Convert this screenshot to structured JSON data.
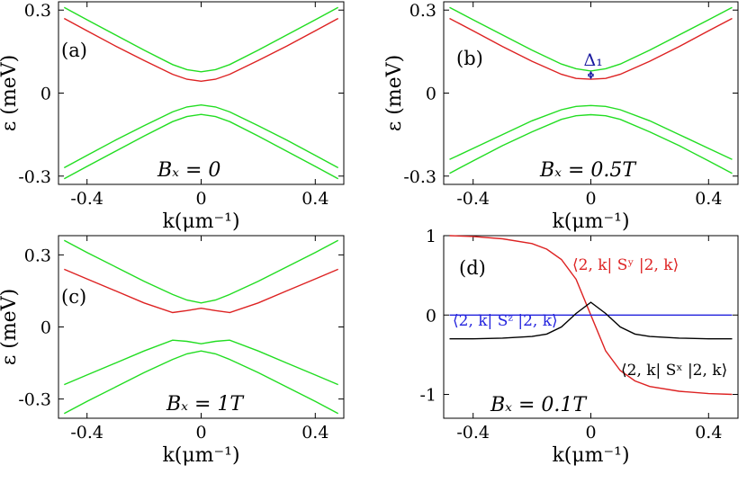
{
  "chart_data": [
    {
      "type": "line",
      "panel_label": "(a)",
      "field_label": "Bₓ = 0",
      "xlabel": "k(μm⁻¹)",
      "ylabel": "ε (meV)",
      "xlim": [
        -0.5,
        0.5
      ],
      "ylim": [
        -0.33,
        0.33
      ],
      "xticks": [
        {
          "value": -0.4,
          "label": "-0.4"
        },
        {
          "value": 0,
          "label": "0"
        },
        {
          "value": 0.4,
          "label": "0.4"
        }
      ],
      "yticks": [
        {
          "value": 0.3,
          "label": "0.3"
        },
        {
          "value": 0,
          "label": "0"
        },
        {
          "value": -0.3,
          "label": "-0.3"
        }
      ],
      "series": [
        {
          "color": "#22dd22",
          "x": [
            -0.48,
            -0.4,
            -0.3,
            -0.2,
            -0.1,
            -0.05,
            0,
            0.05,
            0.1,
            0.2,
            0.3,
            0.4,
            0.48
          ],
          "y": [
            0.31,
            0.265,
            0.21,
            0.155,
            0.103,
            0.085,
            0.077,
            0.085,
            0.103,
            0.155,
            0.21,
            0.265,
            0.31
          ]
        },
        {
          "color": "#dd2222",
          "x": [
            -0.48,
            -0.4,
            -0.3,
            -0.2,
            -0.1,
            -0.05,
            0,
            0.05,
            0.1,
            0.2,
            0.3,
            0.4,
            0.48
          ],
          "y": [
            0.27,
            0.225,
            0.17,
            0.118,
            0.068,
            0.05,
            0.043,
            0.05,
            0.068,
            0.118,
            0.17,
            0.225,
            0.27
          ]
        },
        {
          "color": "#22dd22",
          "x": [
            -0.48,
            -0.4,
            -0.3,
            -0.2,
            -0.1,
            -0.05,
            0,
            0.05,
            0.1,
            0.2,
            0.3,
            0.4,
            0.48
          ],
          "y": [
            -0.27,
            -0.225,
            -0.17,
            -0.118,
            -0.068,
            -0.05,
            -0.043,
            -0.05,
            -0.068,
            -0.118,
            -0.17,
            -0.225,
            -0.27
          ]
        },
        {
          "color": "#22dd22",
          "x": [
            -0.48,
            -0.4,
            -0.3,
            -0.2,
            -0.1,
            -0.05,
            0,
            0.05,
            0.1,
            0.2,
            0.3,
            0.4,
            0.48
          ],
          "y": [
            -0.31,
            -0.265,
            -0.21,
            -0.155,
            -0.103,
            -0.085,
            -0.077,
            -0.085,
            -0.103,
            -0.155,
            -0.21,
            -0.265,
            -0.31
          ]
        }
      ]
    },
    {
      "type": "line",
      "panel_label": "(b)",
      "field_label": "Bₓ = 0.5T",
      "xlabel": "k(μm⁻¹)",
      "ylabel": "ε (meV)",
      "annotation": "Δ₁",
      "xlim": [
        -0.5,
        0.5
      ],
      "ylim": [
        -0.33,
        0.33
      ],
      "xticks": [
        {
          "value": -0.4,
          "label": "-0.4"
        },
        {
          "value": 0,
          "label": "0"
        },
        {
          "value": 0.4,
          "label": "0.4"
        }
      ],
      "yticks": [
        {
          "value": 0.3,
          "label": "0.3"
        },
        {
          "value": 0,
          "label": "0"
        },
        {
          "value": -0.3,
          "label": "-0.3"
        }
      ],
      "series": [
        {
          "color": "#22dd22",
          "x": [
            -0.48,
            -0.4,
            -0.3,
            -0.2,
            -0.1,
            -0.05,
            0,
            0.05,
            0.1,
            0.2,
            0.3,
            0.4,
            0.48
          ],
          "y": [
            0.31,
            0.265,
            0.21,
            0.155,
            0.105,
            0.088,
            0.08,
            0.088,
            0.105,
            0.155,
            0.21,
            0.265,
            0.31
          ]
        },
        {
          "color": "#dd2222",
          "x": [
            -0.48,
            -0.4,
            -0.3,
            -0.2,
            -0.1,
            -0.05,
            0,
            0.05,
            0.1,
            0.2,
            0.3,
            0.4,
            0.48
          ],
          "y": [
            0.27,
            0.225,
            0.168,
            0.115,
            0.068,
            0.053,
            0.05,
            0.053,
            0.068,
            0.115,
            0.168,
            0.225,
            0.27
          ]
        },
        {
          "color": "#22dd22",
          "x": [
            -0.48,
            -0.4,
            -0.3,
            -0.2,
            -0.1,
            -0.05,
            0,
            0.05,
            0.1,
            0.2,
            0.3,
            0.4,
            0.48
          ],
          "y": [
            -0.24,
            -0.2,
            -0.15,
            -0.1,
            -0.06,
            -0.048,
            -0.045,
            -0.048,
            -0.06,
            -0.1,
            -0.15,
            -0.2,
            -0.24
          ]
        },
        {
          "color": "#22dd22",
          "x": [
            -0.48,
            -0.4,
            -0.3,
            -0.2,
            -0.1,
            -0.05,
            0,
            0.05,
            0.1,
            0.2,
            0.3,
            0.4,
            0.48
          ],
          "y": [
            -0.29,
            -0.245,
            -0.19,
            -0.14,
            -0.095,
            -0.082,
            -0.078,
            -0.082,
            -0.095,
            -0.14,
            -0.19,
            -0.245,
            -0.29
          ]
        }
      ]
    },
    {
      "type": "line",
      "panel_label": "(c)",
      "field_label": "Bₓ = 1T",
      "xlabel": "k(μm⁻¹)",
      "ylabel": "ε (meV)",
      "xlim": [
        -0.5,
        0.5
      ],
      "ylim": [
        -0.38,
        0.38
      ],
      "xticks": [
        {
          "value": -0.4,
          "label": "-0.4"
        },
        {
          "value": 0,
          "label": "0"
        },
        {
          "value": 0.4,
          "label": "0.4"
        }
      ],
      "yticks": [
        {
          "value": 0.3,
          "label": "0.3"
        },
        {
          "value": 0,
          "label": "0"
        },
        {
          "value": -0.3,
          "label": "-0.3"
        }
      ],
      "series": [
        {
          "color": "#22dd22",
          "x": [
            -0.48,
            -0.4,
            -0.3,
            -0.2,
            -0.1,
            -0.05,
            0,
            0.05,
            0.1,
            0.2,
            0.3,
            0.4,
            0.48
          ],
          "y": [
            0.36,
            0.31,
            0.25,
            0.19,
            0.135,
            0.112,
            0.1,
            0.112,
            0.135,
            0.19,
            0.25,
            0.31,
            0.36
          ]
        },
        {
          "color": "#dd2222",
          "x": [
            -0.48,
            -0.4,
            -0.3,
            -0.2,
            -0.1,
            -0.05,
            0,
            0.05,
            0.1,
            0.2,
            0.3,
            0.4,
            0.48
          ],
          "y": [
            0.24,
            0.2,
            0.15,
            0.1,
            0.06,
            0.068,
            0.078,
            0.068,
            0.06,
            0.1,
            0.15,
            0.2,
            0.24
          ]
        },
        {
          "color": "#22dd22",
          "x": [
            -0.48,
            -0.4,
            -0.3,
            -0.2,
            -0.1,
            -0.05,
            0,
            0.05,
            0.1,
            0.2,
            0.3,
            0.4,
            0.48
          ],
          "y": [
            -0.24,
            -0.2,
            -0.15,
            -0.1,
            -0.055,
            -0.06,
            -0.07,
            -0.06,
            -0.055,
            -0.1,
            -0.15,
            -0.2,
            -0.24
          ]
        },
        {
          "color": "#22dd22",
          "x": [
            -0.48,
            -0.4,
            -0.3,
            -0.2,
            -0.1,
            -0.05,
            0,
            0.05,
            0.1,
            0.2,
            0.3,
            0.4,
            0.48
          ],
          "y": [
            -0.36,
            -0.31,
            -0.25,
            -0.19,
            -0.135,
            -0.112,
            -0.1,
            -0.112,
            -0.135,
            -0.19,
            -0.25,
            -0.31,
            -0.36
          ]
        }
      ]
    },
    {
      "type": "line",
      "panel_label": "(d)",
      "field_label": "Bₓ = 0.1T",
      "xlabel": "k(μm⁻¹)",
      "xlim": [
        -0.5,
        0.5
      ],
      "ylim": [
        -1.3,
        1.0
      ],
      "xticks": [
        {
          "value": -0.4,
          "label": "-0.4"
        },
        {
          "value": 0,
          "label": "0"
        },
        {
          "value": 0.4,
          "label": "0.4"
        }
      ],
      "yticks": [
        {
          "value": 1,
          "label": "1"
        },
        {
          "value": 0,
          "label": "0"
        },
        {
          "value": -1,
          "label": "-1"
        }
      ],
      "series": [
        {
          "name": "⟨2, k| Sʸ |2, k⟩",
          "color": "#dd2222",
          "x": [
            -0.48,
            -0.4,
            -0.3,
            -0.2,
            -0.15,
            -0.1,
            -0.05,
            0,
            0.05,
            0.1,
            0.15,
            0.2,
            0.3,
            0.4,
            0.48
          ],
          "y": [
            1.0,
            0.99,
            0.96,
            0.9,
            0.83,
            0.7,
            0.45,
            0.0,
            -0.45,
            -0.7,
            -0.83,
            -0.9,
            -0.96,
            -0.99,
            -1.0
          ]
        },
        {
          "name": "⟨2, k| Sᶻ |2, k⟩",
          "color": "#2222dd",
          "x": [
            -0.48,
            0.48
          ],
          "y": [
            0.0,
            0.0
          ]
        },
        {
          "name": "⟨2, k| Sˣ |2, k⟩",
          "color": "#000000",
          "x": [
            -0.48,
            -0.4,
            -0.3,
            -0.2,
            -0.15,
            -0.1,
            -0.05,
            0,
            0.05,
            0.1,
            0.15,
            0.2,
            0.3,
            0.4,
            0.48
          ],
          "y": [
            -0.3,
            -0.3,
            -0.29,
            -0.27,
            -0.24,
            -0.15,
            0.02,
            0.16,
            0.02,
            -0.15,
            -0.24,
            -0.27,
            -0.29,
            -0.3,
            -0.3
          ]
        }
      ]
    }
  ]
}
